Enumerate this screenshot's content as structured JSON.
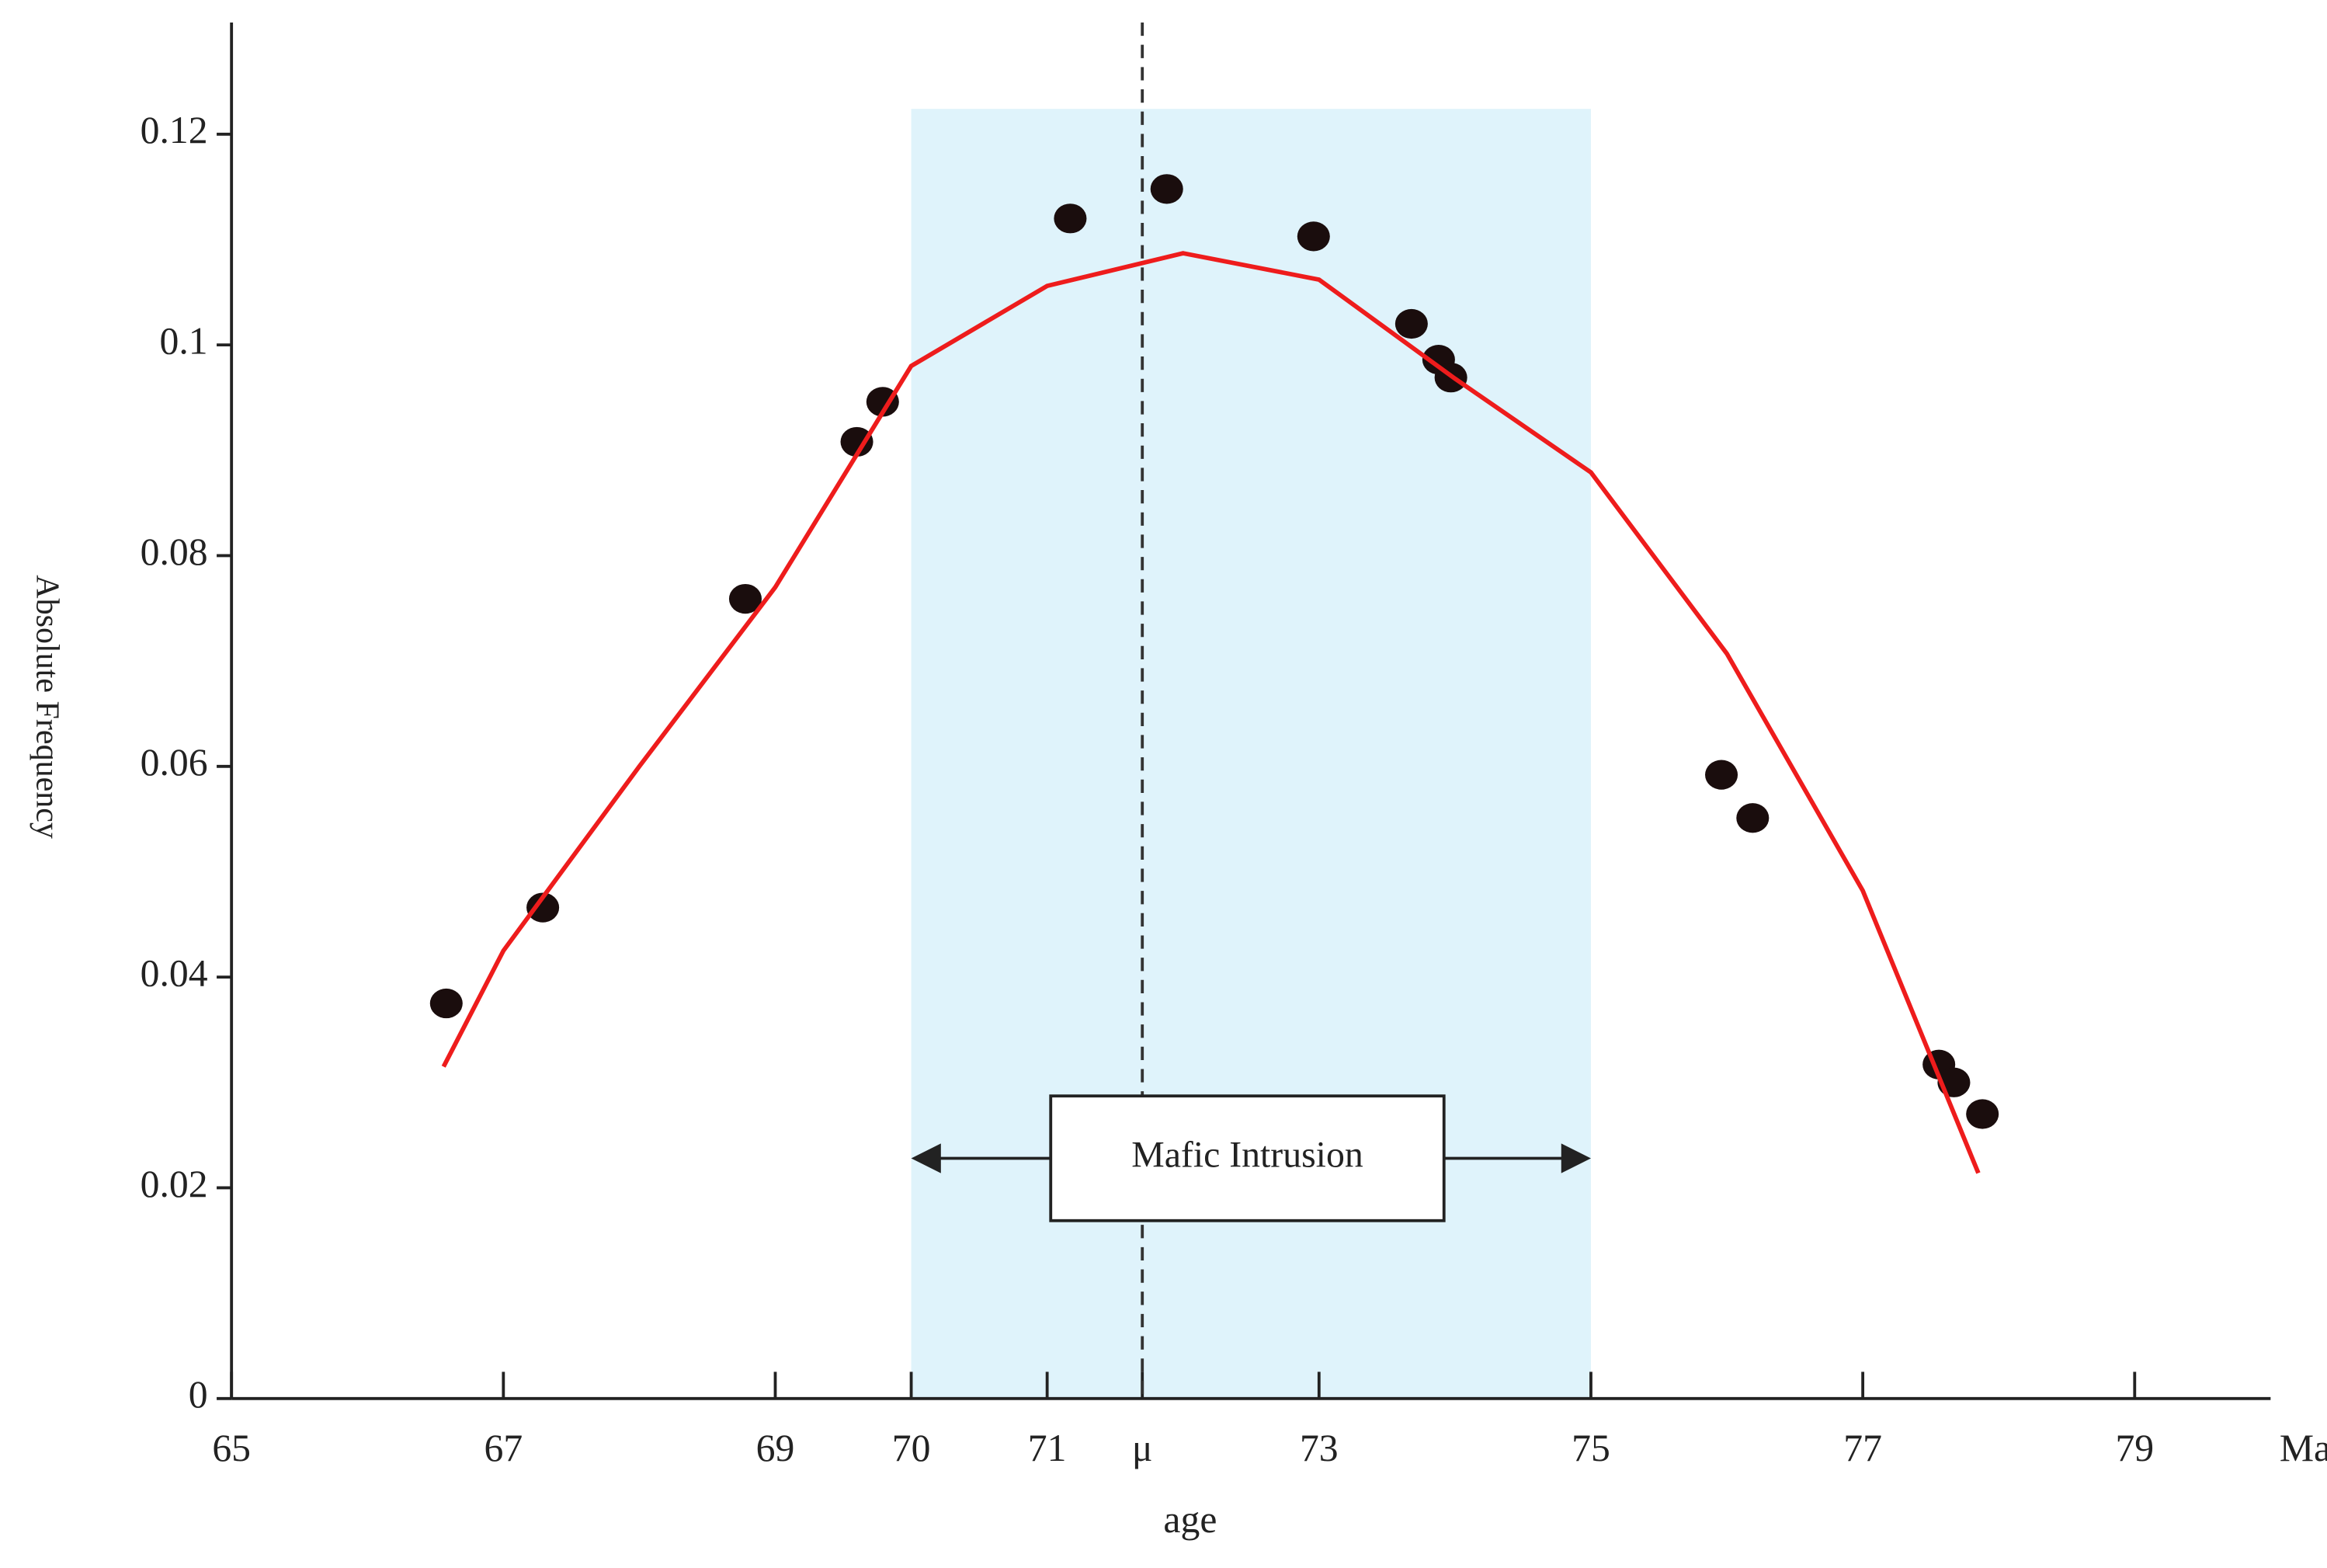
{
  "chart_data": {
    "type": "scatter",
    "x_label": "age",
    "x_unit": "Ma",
    "y_label": "Absolute Frequency",
    "xlim": [
      65,
      80
    ],
    "ylim": [
      0,
      0.1306
    ],
    "xticks": [
      65,
      67,
      69,
      70,
      71,
      {
        "value": 71.7,
        "label": "μ"
      },
      73,
      75,
      77,
      79
    ],
    "yticks": [
      0,
      0.02,
      0.04,
      0.06,
      0.08,
      0.1,
      0.12
    ],
    "span": {
      "x": [
        70,
        75
      ],
      "top": 0.1224,
      "color": "#dff3fb"
    },
    "vline": {
      "x": 71.7,
      "dashed": true,
      "color": "#333"
    },
    "annotation": {
      "text": "Mafic Intrusion",
      "x": [
        70,
        75
      ],
      "y": 0.0228
    },
    "series": [
      {
        "type": "scatter",
        "color": "#1a0d0d",
        "x": [
          66.58,
          67.29,
          68.78,
          69.6,
          69.79,
          71.17,
          71.88,
          72.96,
          73.68,
          73.88,
          73.97,
          75.96,
          76.19,
          77.56,
          77.67,
          77.88
        ],
        "values": [
          0.0375,
          0.0466,
          0.0759,
          0.0908,
          0.0946,
          0.112,
          0.1148,
          0.1103,
          0.102,
          0.0986,
          0.0969,
          0.0592,
          0.0551,
          0.0317,
          0.03,
          0.027
        ]
      },
      {
        "type": "line",
        "color": "#ee1c1c",
        "x": [
          66.56,
          67,
          68,
          69,
          70,
          71,
          72,
          73,
          74,
          75,
          76,
          77,
          77.85
        ],
        "values": [
          0.0315,
          0.0425,
          0.06,
          0.077,
          0.098,
          0.1056,
          0.1087,
          0.1062,
          0.0968,
          0.0879,
          0.0707,
          0.0482,
          0.0214
        ]
      }
    ]
  }
}
